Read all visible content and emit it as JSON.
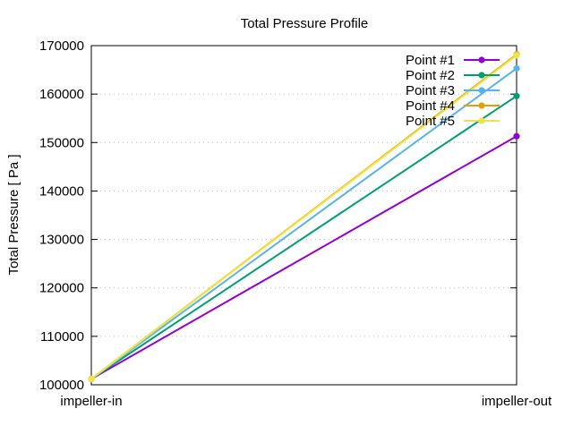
{
  "chart_data": {
    "type": "line",
    "title": "Total Pressure Profile",
    "xlabel": "",
    "ylabel": "Total Pressure [ Pa ]",
    "categories": [
      "impeller-in",
      "impeller-out"
    ],
    "ylim": [
      100000,
      170000
    ],
    "yticks": [
      100000,
      110000,
      120000,
      130000,
      140000,
      150000,
      160000,
      170000
    ],
    "grid": true,
    "legend_position": "top-right",
    "series": [
      {
        "name": "Point #1",
        "color": "#9400d3",
        "values": [
          101200,
          151300
        ]
      },
      {
        "name": "Point #2",
        "color": "#009e73",
        "values": [
          101200,
          159600
        ]
      },
      {
        "name": "Point #3",
        "color": "#56b4e9",
        "values": [
          101200,
          165300
        ]
      },
      {
        "name": "Point #4",
        "color": "#e69f00",
        "values": [
          101200,
          168200
        ]
      },
      {
        "name": "Point #5",
        "color": "#f0e442",
        "values": [
          101200,
          168000
        ]
      }
    ]
  }
}
